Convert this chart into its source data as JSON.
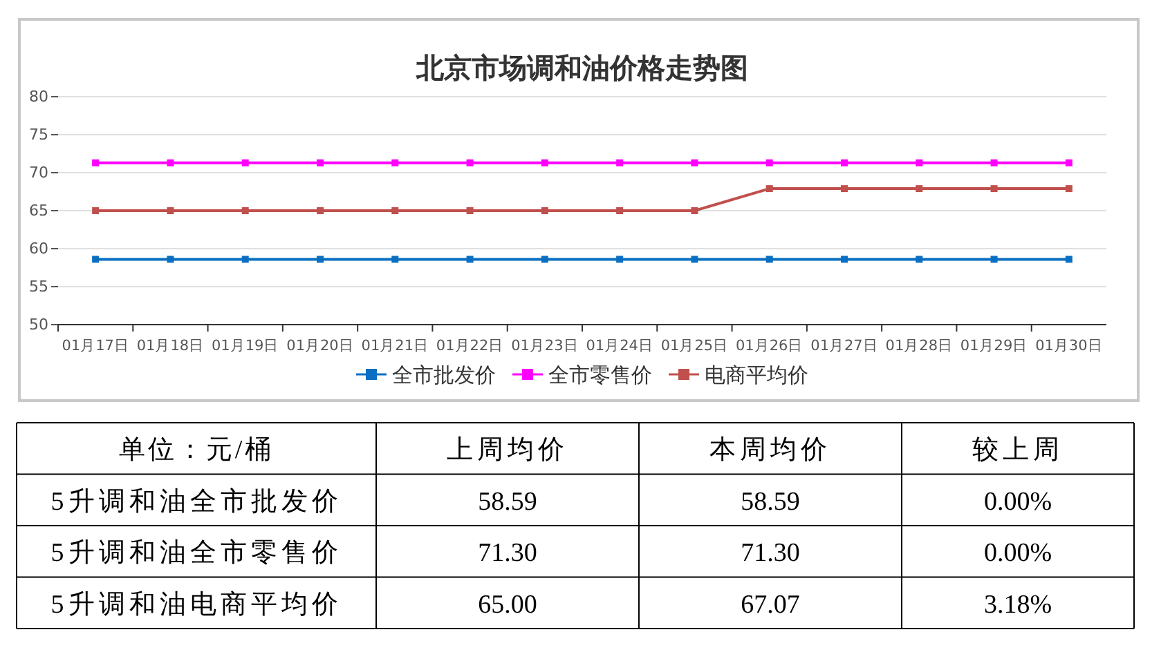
{
  "chart_data": [
    {
      "type": "line",
      "title": "北京市场调和油价格走势图",
      "categories": [
        "01月17日",
        "01月18日",
        "01月19日",
        "01月20日",
        "01月21日",
        "01月22日",
        "01月23日",
        "01月24日",
        "01月25日",
        "01月26日",
        "01月27日",
        "01月28日",
        "01月29日",
        "01月30日"
      ],
      "series": [
        {
          "name": "全市批发价",
          "color": "#0a6fc2",
          "values": [
            58.6,
            58.6,
            58.6,
            58.6,
            58.6,
            58.6,
            58.6,
            58.6,
            58.6,
            58.6,
            58.6,
            58.6,
            58.6,
            58.6
          ]
        },
        {
          "name": "全市零售价",
          "color": "#ff00ff",
          "values": [
            71.3,
            71.3,
            71.3,
            71.3,
            71.3,
            71.3,
            71.3,
            71.3,
            71.3,
            71.3,
            71.3,
            71.3,
            71.3,
            71.3
          ]
        },
        {
          "name": "电商平均价",
          "color": "#c0504d",
          "values": [
            65,
            65,
            65,
            65,
            65,
            65,
            65,
            65,
            65,
            67.9,
            67.9,
            67.9,
            67.9,
            67.9
          ]
        }
      ],
      "ylim": [
        50,
        80
      ],
      "yticks": [
        50,
        55,
        60,
        65,
        70,
        75,
        80
      ],
      "grid": "y",
      "legend": "bottom",
      "marker": "square",
      "line_style": "solid"
    },
    {
      "type": "other",
      "title": "单位：元/桶",
      "categories": [
        "5升调和油全市批发价",
        "5升调和油全市零售价",
        "5升调和油电商平均价"
      ],
      "series": [
        {
          "name": "上周均价",
          "values": [
            58.59,
            71.3,
            65
          ],
          "value_labels": [
            "58.59",
            "71.30",
            "65.00"
          ]
        },
        {
          "name": "本周均价",
          "values": [
            58.59,
            71.3,
            67.07
          ],
          "value_labels": [
            "58.59",
            "71.30",
            "67.07"
          ]
        },
        {
          "name": "较上周",
          "values": [
            0,
            0,
            3.18
          ],
          "value_labels": [
            "0.00%",
            "0.00%",
            "3.18%"
          ]
        }
      ]
    }
  ]
}
